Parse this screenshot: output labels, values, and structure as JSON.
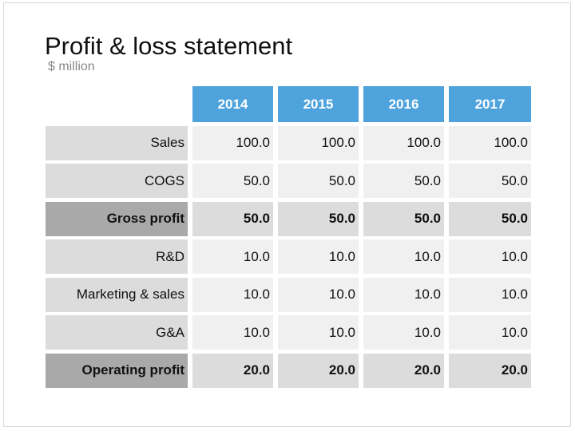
{
  "title": "Profit & loss statement",
  "subtitle": "$ million",
  "table": {
    "years": [
      "2014",
      "2015",
      "2016",
      "2017"
    ],
    "rows": [
      {
        "label": "Sales",
        "values": [
          "100.0",
          "100.0",
          "100.0",
          "100.0"
        ],
        "bold": false
      },
      {
        "label": "COGS",
        "values": [
          "50.0",
          "50.0",
          "50.0",
          "50.0"
        ],
        "bold": false
      },
      {
        "label": "Gross profit",
        "values": [
          "50.0",
          "50.0",
          "50.0",
          "50.0"
        ],
        "bold": true
      },
      {
        "label": "R&D",
        "values": [
          "10.0",
          "10.0",
          "10.0",
          "10.0"
        ],
        "bold": false
      },
      {
        "label": "Marketing & sales",
        "values": [
          "10.0",
          "10.0",
          "10.0",
          "10.0"
        ],
        "bold": false
      },
      {
        "label": "G&A",
        "values": [
          "10.0",
          "10.0",
          "10.0",
          "10.0"
        ],
        "bold": false
      },
      {
        "label": "Operating profit",
        "values": [
          "20.0",
          "20.0",
          "20.0",
          "20.0"
        ],
        "bold": true
      }
    ]
  },
  "colors": {
    "header": "#4fa3dc",
    "label_cell": "#dcdcdc",
    "value_cell": "#f0f0f0",
    "total_label_cell": "#a9a9a9",
    "total_value_cell": "#dcdcdc"
  }
}
